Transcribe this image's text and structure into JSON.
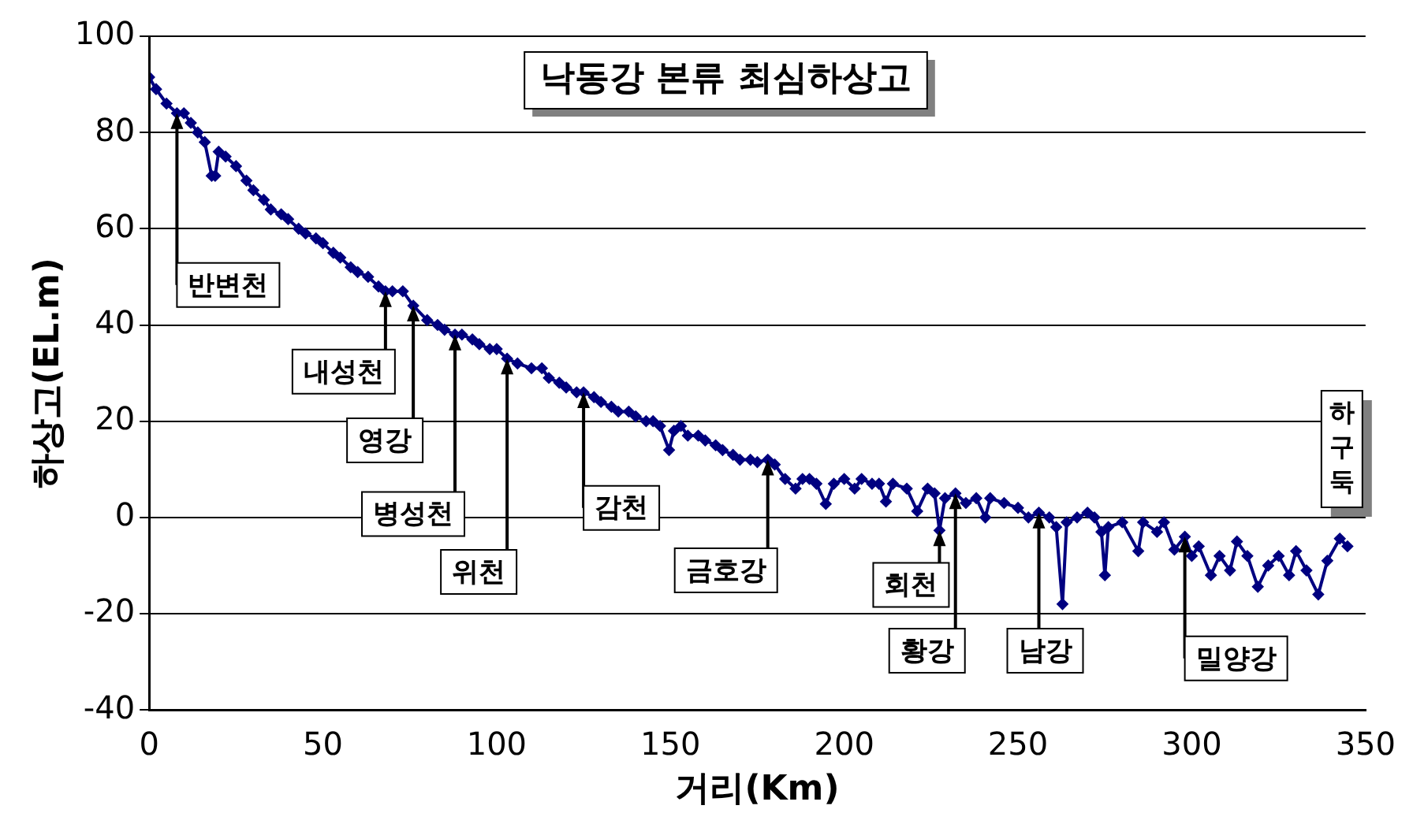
{
  "chart_data": {
    "type": "line",
    "title": "낙동강 본류 최심하상고",
    "xlabel": "거리(Km)",
    "ylabel": "하상고(EL.m)",
    "x": [
      0,
      2,
      5,
      8,
      10,
      12,
      14,
      16,
      18,
      19,
      20,
      22,
      25,
      28,
      30,
      33,
      35,
      38,
      40,
      43,
      45,
      48,
      50,
      53,
      55,
      58,
      60,
      63,
      66,
      68,
      70,
      73,
      76,
      80,
      83,
      85,
      88,
      90,
      93,
      95,
      98,
      100,
      103,
      106,
      110,
      113,
      115,
      118,
      120,
      123,
      125,
      128,
      130,
      133,
      135,
      138,
      140,
      143,
      145,
      147,
      149.6,
      151,
      153,
      155,
      158,
      160,
      163,
      165,
      168,
      170,
      173,
      175,
      178,
      180,
      183,
      186,
      188,
      190,
      192,
      194.7,
      197,
      200,
      203,
      205,
      208,
      210,
      212,
      214,
      218,
      221,
      224,
      226,
      227.4,
      229,
      232,
      235,
      238,
      240.6,
      242,
      246,
      250,
      253,
      256,
      259,
      261,
      262.8,
      264,
      267,
      270,
      272,
      274,
      275,
      276,
      280,
      284.6,
      286,
      290,
      292,
      295,
      298,
      300,
      302,
      305.5,
      308,
      311,
      313,
      316,
      319,
      322,
      325,
      328,
      330,
      333,
      336.4,
      339,
      342.6,
      344.8
    ],
    "series": [
      {
        "color": "#000080",
        "values": [
          91.5,
          89,
          86,
          84,
          84,
          82,
          80,
          78,
          71,
          71,
          76,
          75,
          73,
          70,
          68,
          66,
          64,
          63,
          62,
          60,
          59,
          58,
          57,
          55,
          54,
          52,
          51,
          50,
          48,
          47,
          47,
          47,
          44,
          41,
          40,
          39,
          38,
          38,
          37,
          36,
          35,
          35,
          33,
          32,
          31,
          31,
          29,
          28,
          27,
          26,
          26,
          25,
          24,
          23,
          22,
          22,
          21,
          20,
          20,
          19,
          14,
          18,
          19,
          17,
          17,
          16,
          15,
          14,
          13,
          12,
          12,
          11.5,
          12,
          11,
          8,
          6,
          8,
          8,
          7,
          2.8,
          7,
          8,
          6,
          8,
          7,
          7,
          3.3,
          7,
          6,
          1.3,
          6,
          5,
          -2.7,
          4,
          5,
          3,
          4,
          0,
          4,
          3,
          2,
          0,
          1,
          0,
          -2,
          -18,
          -1,
          0,
          1,
          0,
          -3,
          -12,
          -2,
          -1,
          -7,
          -1,
          -3,
          -1,
          -6.7,
          -4,
          -8,
          -6,
          -12,
          -8,
          -11,
          -5,
          -8,
          -14.4,
          -10,
          -8,
          -12,
          -7,
          -11,
          -16,
          -9,
          -4.4,
          -6
        ]
      }
    ],
    "xlim": [
      0,
      350
    ],
    "xticks": [
      0,
      50,
      100,
      150,
      200,
      250,
      300,
      350
    ],
    "ylim": [
      -40,
      100
    ],
    "yticks": [
      -40,
      -20,
      0,
      20,
      40,
      60,
      80,
      100
    ],
    "grid": "y",
    "legend": false,
    "marker": "diamond",
    "line_style": "solid",
    "annotations": [
      {
        "text": "반변천",
        "x": 8,
        "y": 84
      },
      {
        "text": "내성천",
        "x": 68,
        "y": 47
      },
      {
        "text": "영강",
        "x": 76,
        "y": 44
      },
      {
        "text": "병성천",
        "x": 88,
        "y": 38
      },
      {
        "text": "위천",
        "x": 103,
        "y": 33
      },
      {
        "text": "감천",
        "x": 125,
        "y": 26
      },
      {
        "text": "금호강",
        "x": 178,
        "y": 12
      },
      {
        "text": "회천",
        "x": 227.4,
        "y": -2.7
      },
      {
        "text": "황강",
        "x": 232,
        "y": 5
      },
      {
        "text": "남강",
        "x": 256,
        "y": 1
      },
      {
        "text": "밀양강",
        "x": 298,
        "y": -4
      },
      "하구둑"
    ]
  }
}
